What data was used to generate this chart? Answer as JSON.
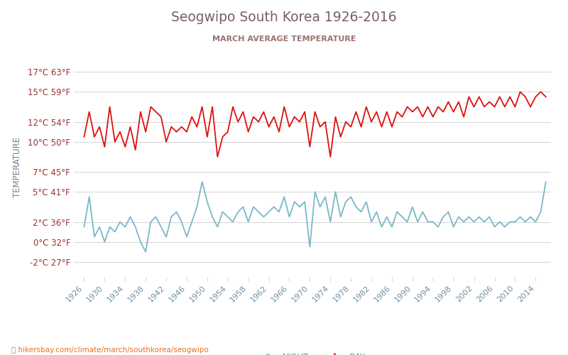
{
  "title": "Seogwipo South Korea 1926-2016",
  "subtitle": "MARCH AVERAGE TEMPERATURE",
  "ylabel": "TEMPERATURE",
  "xlabel_url": "hikersbay.com/climate/march/southkorea/seogwipo",
  "year_start": 1926,
  "year_end": 2016,
  "yticks_c": [
    17,
    15,
    12,
    10,
    7,
    5,
    2,
    0,
    -2
  ],
  "yticks_f": [
    63,
    59,
    54,
    50,
    45,
    41,
    36,
    32,
    27
  ],
  "ylim_c": [
    -3.5,
    18.5
  ],
  "title_color": "#7a6060",
  "subtitle_color": "#9a7070",
  "tick_label_color": "#9a3030",
  "ylabel_color": "#7a8090",
  "grid_color": "#d8d8d8",
  "day_color": "#dd1111",
  "night_color": "#7ab8c8",
  "background_color": "#ffffff",
  "xtick_label_color": "#7090a0",
  "day_data": [
    10.5,
    13.0,
    10.5,
    11.5,
    9.5,
    13.5,
    10.0,
    11.0,
    9.5,
    11.5,
    9.2,
    13.0,
    11.0,
    13.5,
    13.0,
    12.5,
    10.0,
    11.5,
    11.0,
    11.5,
    11.0,
    12.5,
    11.5,
    13.5,
    10.5,
    13.5,
    8.5,
    10.5,
    11.0,
    13.5,
    12.0,
    13.0,
    11.0,
    12.5,
    12.0,
    13.0,
    11.5,
    12.5,
    11.0,
    13.5,
    11.5,
    12.5,
    12.0,
    13.0,
    9.5,
    13.0,
    11.5,
    12.0,
    8.5,
    12.5,
    10.5,
    12.0,
    11.5,
    13.0,
    11.5,
    13.5,
    12.0,
    13.0,
    11.5,
    13.0,
    11.5,
    13.0,
    12.5,
    13.5,
    13.0,
    13.5,
    12.5,
    13.5,
    12.5,
    13.5,
    13.0,
    14.0,
    13.0,
    14.0,
    12.5,
    14.5,
    13.5,
    14.5,
    13.5,
    14.0,
    13.5,
    14.5,
    13.5,
    14.5,
    13.5,
    15.0,
    14.5,
    13.5,
    14.5,
    15.0,
    14.5
  ],
  "night_data": [
    1.5,
    4.5,
    0.5,
    1.5,
    0.0,
    1.5,
    1.0,
    2.0,
    1.5,
    2.5,
    1.5,
    0.0,
    -1.0,
    2.0,
    2.5,
    1.5,
    0.5,
    2.5,
    3.0,
    2.0,
    0.5,
    2.0,
    3.5,
    6.0,
    4.0,
    2.5,
    1.5,
    3.0,
    2.5,
    2.0,
    3.0,
    3.5,
    2.0,
    3.5,
    3.0,
    2.5,
    3.0,
    3.5,
    3.0,
    4.5,
    2.5,
    4.0,
    3.5,
    4.0,
    -0.5,
    5.0,
    3.5,
    4.5,
    2.0,
    5.0,
    2.5,
    4.0,
    4.5,
    3.5,
    3.0,
    4.0,
    2.0,
    3.0,
    1.5,
    2.5,
    1.5,
    3.0,
    2.5,
    2.0,
    3.5,
    2.0,
    3.0,
    2.0,
    2.0,
    1.5,
    2.5,
    3.0,
    1.5,
    2.5,
    2.0,
    2.5,
    2.0,
    2.5,
    2.0,
    2.5,
    1.5,
    2.0,
    1.5,
    2.0,
    2.0,
    2.5,
    2.0,
    2.5,
    2.0,
    3.0,
    6.0
  ]
}
